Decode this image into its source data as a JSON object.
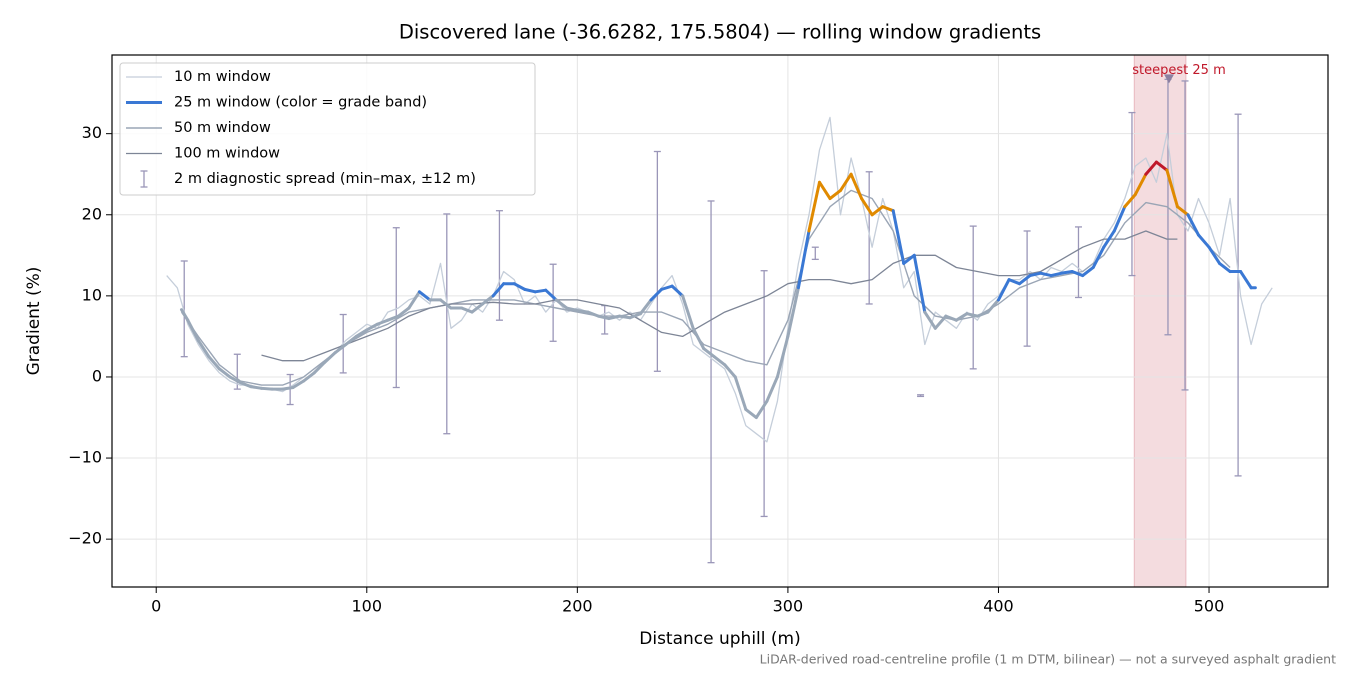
{
  "chart_data": {
    "type": "line",
    "title": "Discovered lane (-36.6282, 175.5804) — rolling window gradients",
    "xlabel": "Distance uphill (m)",
    "ylabel": "Gradient (%)",
    "footnote": "LiDAR-derived road-centreline profile (1 m DTM, bilinear) — not a surveyed asphalt gradient",
    "xlim": [
      -21,
      556.5
    ],
    "ylim": [
      -25.9,
      39.7
    ],
    "xticks": [
      0,
      100,
      200,
      300,
      400,
      500
    ],
    "yticks": [
      {
        "value": -20,
        "label": "−20"
      },
      {
        "value": -10,
        "label": "−10"
      },
      0,
      10,
      20,
      30
    ],
    "grid": true,
    "legend": "upper left",
    "series": [
      {
        "name": "10 m window",
        "color": "#c5ceda",
        "width": 1.3,
        "x": [
          5,
          10,
          15,
          20,
          25,
          30,
          35,
          40,
          45,
          50,
          55,
          60,
          65,
          70,
          75,
          80,
          85,
          90,
          95,
          100,
          105,
          110,
          115,
          120,
          125,
          130,
          135,
          140,
          145,
          150,
          155,
          160,
          165,
          170,
          175,
          180,
          185,
          190,
          195,
          200,
          205,
          210,
          215,
          220,
          225,
          230,
          235,
          240,
          245,
          250,
          255,
          260,
          265,
          270,
          275,
          280,
          285,
          290,
          295,
          300,
          305,
          310,
          315,
          320,
          325,
          330,
          335,
          340,
          345,
          350,
          355,
          360,
          365,
          370,
          375,
          380,
          385,
          390,
          395,
          400,
          405,
          410,
          415,
          420,
          425,
          430,
          435,
          440,
          445,
          450,
          455,
          460,
          465,
          470,
          475,
          480,
          485,
          490,
          495,
          500,
          505,
          510,
          515,
          520,
          525,
          530
        ],
        "values": [
          12.5,
          11,
          6.5,
          4,
          2,
          0.5,
          -0.5,
          -1,
          -1,
          -1.5,
          -1.5,
          -1.8,
          -1,
          0,
          1,
          2,
          3,
          4.5,
          5.5,
          6.5,
          6,
          8,
          8.5,
          9.5,
          10,
          9,
          14,
          6,
          7,
          9,
          8,
          10,
          13,
          12,
          9,
          10,
          8,
          9.5,
          8,
          8.5,
          8,
          7.5,
          8,
          7,
          8,
          7,
          9,
          11,
          12.5,
          9,
          4,
          3,
          2,
          1,
          -2,
          -6,
          -7,
          -8,
          -3,
          6,
          14,
          20,
          28,
          32,
          20,
          27,
          22,
          16,
          22,
          18,
          11,
          13,
          4,
          8,
          7,
          6,
          8,
          7,
          9,
          10,
          12,
          12,
          13,
          12,
          13.5,
          13,
          14,
          13,
          14,
          17,
          19,
          22,
          26,
          27,
          24,
          30,
          20,
          18,
          22,
          19,
          15,
          22,
          10,
          4,
          9,
          11
        ]
      },
      {
        "name": "25 m window (color = grade band)",
        "color": "#9aa8b8",
        "width": 3,
        "color_bands": [
          {
            "from": 10,
            "color": "#3a78d4"
          },
          {
            "from": 20,
            "color": "#e08a00"
          },
          {
            "from": 25,
            "color": "#c0182a"
          }
        ],
        "x": [
          12,
          15,
          20,
          25,
          30,
          35,
          40,
          45,
          50,
          55,
          60,
          65,
          70,
          75,
          80,
          85,
          90,
          95,
          100,
          105,
          110,
          115,
          120,
          125,
          130,
          135,
          140,
          145,
          150,
          155,
          160,
          165,
          170,
          175,
          180,
          185,
          190,
          195,
          200,
          205,
          210,
          215,
          220,
          225,
          230,
          235,
          240,
          245,
          250,
          255,
          260,
          265,
          270,
          275,
          280,
          285,
          290,
          295,
          300,
          305,
          310,
          315,
          320,
          325,
          330,
          335,
          340,
          345,
          350,
          355,
          360,
          365,
          370,
          375,
          380,
          385,
          390,
          395,
          400,
          405,
          410,
          415,
          420,
          425,
          430,
          435,
          440,
          445,
          450,
          455,
          460,
          465,
          470,
          475,
          480,
          485,
          490,
          495,
          500,
          505,
          510,
          515,
          520,
          522
        ],
        "values": [
          8.3,
          7,
          4.5,
          2.5,
          1,
          0,
          -0.7,
          -1.2,
          -1.4,
          -1.5,
          -1.5,
          -1.3,
          -0.5,
          0.5,
          1.8,
          3,
          4,
          5,
          5.8,
          6.5,
          7,
          7.5,
          8.5,
          10.5,
          9.5,
          9.5,
          8.5,
          8.5,
          8,
          9,
          10,
          11.5,
          11.5,
          10.8,
          10.5,
          10.7,
          9.5,
          8.5,
          8.2,
          8,
          7.5,
          7.2,
          7.5,
          7.3,
          7.8,
          9.5,
          10.8,
          11.2,
          10,
          6,
          3.5,
          2.5,
          1.5,
          0,
          -4,
          -5,
          -3,
          0,
          5,
          11,
          18,
          24,
          22,
          23,
          25,
          22,
          20,
          21,
          20.5,
          14,
          15,
          8,
          6,
          7.5,
          7,
          7.8,
          7.5,
          8,
          9.5,
          12,
          11.5,
          12.5,
          12.8,
          12.5,
          12.8,
          13,
          12.5,
          13.5,
          16,
          18,
          21,
          22.5,
          25,
          26.5,
          25.5,
          21,
          20,
          17.5,
          16,
          14,
          13,
          13,
          11,
          11
        ]
      },
      {
        "name": "50 m window",
        "color": "#9aa5b5",
        "width": 1.4,
        "x": [
          12,
          20,
          30,
          40,
          50,
          60,
          70,
          80,
          90,
          100,
          110,
          120,
          130,
          140,
          150,
          160,
          170,
          180,
          190,
          200,
          210,
          220,
          230,
          240,
          250,
          260,
          270,
          280,
          290,
          300,
          310,
          320,
          330,
          340,
          350,
          360,
          370,
          380,
          390,
          400,
          410,
          420,
          430,
          440,
          450,
          460,
          470,
          480,
          490,
          500,
          510
        ],
        "values": [
          8,
          5,
          1.5,
          -0.5,
          -1,
          -1,
          0,
          2,
          4,
          5.5,
          6.5,
          8,
          8.5,
          9,
          9.5,
          9.5,
          9.5,
          9,
          8.5,
          8,
          7.5,
          7.5,
          8,
          8,
          7,
          4,
          3,
          2,
          1.5,
          7,
          17,
          21,
          23,
          22,
          18,
          10,
          7.5,
          7,
          7.5,
          9,
          11,
          12,
          12.5,
          13,
          15,
          19,
          21.5,
          21,
          19,
          16,
          13.5
        ]
      },
      {
        "name": "100 m window",
        "color": "#7d8596",
        "width": 1.3,
        "x": [
          50,
          60,
          70,
          80,
          90,
          100,
          110,
          120,
          130,
          140,
          150,
          160,
          170,
          180,
          190,
          200,
          210,
          220,
          230,
          240,
          250,
          260,
          270,
          280,
          290,
          300,
          310,
          320,
          330,
          340,
          350,
          360,
          370,
          380,
          390,
          400,
          410,
          420,
          430,
          440,
          450,
          460,
          470,
          480,
          485
        ],
        "values": [
          2.7,
          2,
          2,
          3,
          4,
          5,
          6,
          7.5,
          8.5,
          9,
          9,
          9.2,
          9,
          9,
          9.5,
          9.5,
          9,
          8.5,
          7,
          5.5,
          5,
          6.5,
          8,
          9,
          10,
          11.5,
          12,
          12,
          11.5,
          12,
          14,
          15,
          15,
          13.5,
          13,
          12.5,
          12.5,
          13,
          14.5,
          16,
          17,
          17,
          18,
          17,
          17
        ]
      }
    ],
    "error_bars": {
      "name": "2 m diagnostic spread (min–max, ±12 m)",
      "color": "#9a96b8",
      "x": [
        13.3,
        38.5,
        63.6,
        88.8,
        114,
        138,
        163,
        188.5,
        213,
        238,
        263.5,
        288.7,
        313,
        338.6,
        363,
        388,
        413.6,
        438,
        463.4,
        480.5,
        488.6,
        513.8
      ],
      "low": [
        2.5,
        -1.5,
        -3.4,
        0.5,
        -1.3,
        -7,
        7,
        4.4,
        5.3,
        0.7,
        -22.9,
        -17.2,
        14.5,
        9,
        -2.4,
        1,
        3.8,
        9.8,
        12.5,
        5.2,
        -1.6,
        -12.2
      ],
      "high": [
        14.3,
        2.8,
        0.3,
        7.7,
        18.4,
        20.1,
        20.5,
        13.9,
        8.8,
        27.8,
        21.7,
        13.1,
        16,
        25.3,
        -2.2,
        18.6,
        18,
        18.5,
        32.6,
        36.7,
        36.5,
        32.4
      ]
    },
    "highlight": {
      "x0": 464.5,
      "x1": 489,
      "color": "#e9b9c0"
    },
    "annotation": {
      "text": "steepest 25 m",
      "x": 481,
      "y": 36.7,
      "color": "#c0182a",
      "marker_color": "#8c7fa0"
    }
  }
}
